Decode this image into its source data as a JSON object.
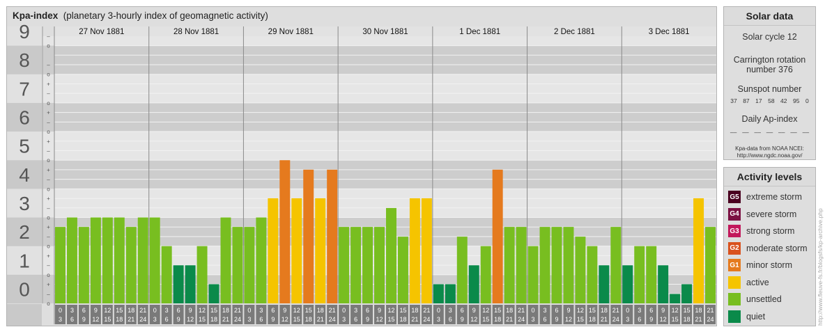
{
  "header": {
    "title": "Kpa-index",
    "subtitle": "(planetary 3-hourly index of geomagnetic activity)"
  },
  "chart_data": {
    "type": "bar",
    "y_labels": [
      "0",
      "1",
      "2",
      "3",
      "4",
      "5",
      "6",
      "7",
      "8",
      "9"
    ],
    "sub_tick_labels": [
      "+",
      "o",
      "–"
    ],
    "ylim": [
      0,
      9.33
    ],
    "days": [
      {
        "label": "27 Nov 1881",
        "values": [
          2.67,
          3.0,
          2.67,
          3.0,
          3.0,
          3.0,
          2.67,
          3.0
        ]
      },
      {
        "label": "28 Nov 1881",
        "values": [
          3.0,
          2.0,
          1.33,
          1.33,
          2.0,
          0.67,
          3.0,
          2.67
        ]
      },
      {
        "label": "29 Nov 1881",
        "values": [
          2.67,
          3.0,
          3.67,
          5.0,
          3.67,
          4.67,
          3.67,
          4.67
        ]
      },
      {
        "label": "30 Nov 1881",
        "values": [
          2.67,
          2.67,
          2.67,
          2.67,
          3.33,
          2.33,
          3.67,
          3.67
        ]
      },
      {
        "label": "1 Dec 1881",
        "values": [
          0.67,
          0.67,
          2.33,
          1.33,
          2.0,
          4.67,
          2.67,
          2.67
        ]
      },
      {
        "label": "2 Dec 1881",
        "values": [
          2.0,
          2.67,
          2.67,
          2.67,
          2.33,
          2.0,
          1.33,
          2.67
        ]
      },
      {
        "label": "3 Dec 1881",
        "values": [
          1.33,
          2.0,
          2.0,
          1.33,
          0.33,
          0.67,
          3.67,
          2.67
        ]
      }
    ],
    "hour_starts": [
      "0",
      "3",
      "6",
      "9",
      "12",
      "15",
      "18",
      "21"
    ],
    "hour_ends": [
      "3",
      "6",
      "9",
      "12",
      "15",
      "18",
      "21",
      "24"
    ],
    "colors": {
      "quiet": "#0a8a4a",
      "unsettled": "#78be20",
      "active": "#f5c400",
      "G1": "#e57a1e",
      "G2": "#d9521e",
      "G3": "#c2185b",
      "G4": "#7b1042",
      "G5": "#4a0020"
    }
  },
  "solar": {
    "title": "Solar data",
    "cycle": "Solar cycle 12",
    "carrington_line1": "Carrington rotation",
    "carrington_line2": "number 376",
    "sunspot_title": "Sunspot number",
    "sunspots": [
      "37",
      "87",
      "17",
      "58",
      "42",
      "95",
      "0"
    ],
    "ap_title": "Daily Ap-index",
    "ap_values": [
      "––",
      "––",
      "––",
      "––",
      "––",
      "––",
      "––"
    ],
    "source_line1": "Kpa-data from NOAA NCEI:",
    "source_line2": "http://www.ngdc.noaa.gov/"
  },
  "activity": {
    "title": "Activity levels",
    "items": [
      {
        "badge": "G5",
        "label": "extreme storm",
        "color": "#4a0020"
      },
      {
        "badge": "G4",
        "label": "severe storm",
        "color": "#7b1042"
      },
      {
        "badge": "G3",
        "label": "strong storm",
        "color": "#c2185b"
      },
      {
        "badge": "G2",
        "label": "moderate storm",
        "color": "#d9521e"
      },
      {
        "badge": "G1",
        "label": "minor storm",
        "color": "#e57a1e"
      },
      {
        "badge": "",
        "label": "active",
        "color": "#f5c400"
      },
      {
        "badge": "",
        "label": "unsettled",
        "color": "#78be20"
      },
      {
        "badge": "",
        "label": "quiet",
        "color": "#0a8a4a"
      }
    ]
  },
  "watermark": "http://www.fleuve-fs.fr/blogsfs/kp-archive.php"
}
